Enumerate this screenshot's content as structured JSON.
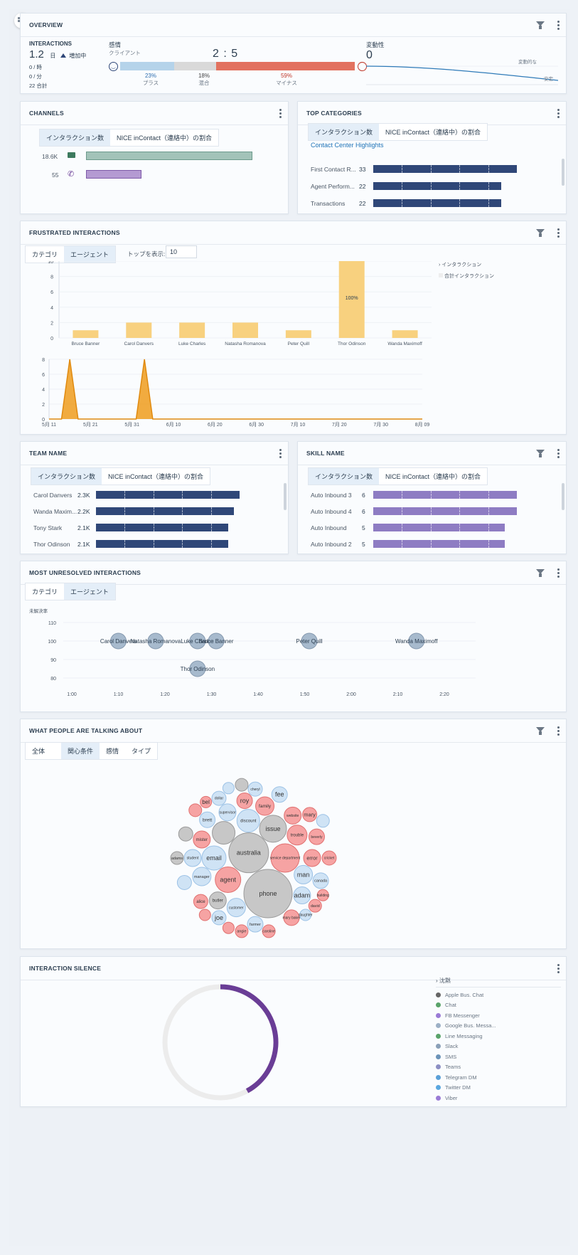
{
  "overview": {
    "title": "OVERVIEW",
    "interactions_label": "INTERACTIONS",
    "interactions_value": "1.2",
    "interactions_unit": "日",
    "trend": "増加中",
    "per_hour": "0 / 時",
    "per_min": "0 / 分",
    "total": "22 合計",
    "sentiment_label": "感情",
    "sentiment_sub": "クライアント",
    "ratio": "2 : 5",
    "pos_pct": "23%",
    "pos_label": "プラス",
    "mix_pct": "18%",
    "mix_label": "混合",
    "neg_pct": "59%",
    "neg_label": "マイナス",
    "pos_share": 23,
    "mix_share": 18,
    "neg_share": 59,
    "volatility_label": "変動性",
    "volatility_value": "0",
    "volatile_label": "変動的な",
    "stable_label": "安定"
  },
  "channels": {
    "title": "CHANNELS",
    "tabs": [
      "インタラクション数",
      "NICE inContact（連絡中）の割合"
    ],
    "rows": [
      {
        "value": "18.6K",
        "icon": "email-icon",
        "amount": 18600,
        "color": "#a3c3b9"
      },
      {
        "value": "55",
        "icon": "phone-icon",
        "amount": 55,
        "color": "#b49ad2"
      }
    ]
  },
  "top_categories": {
    "title": "TOP CATEGORIES",
    "tabs": [
      "インタラクション数",
      "NICE inContact（連絡中）の割合"
    ],
    "link": "Contact Center Highlights",
    "rows": [
      {
        "label": "First Contact R...",
        "value": "33",
        "amount": 33
      },
      {
        "label": "Agent Perform...",
        "value": "22",
        "amount": 22
      },
      {
        "label": "Transactions",
        "value": "22",
        "amount": 22
      }
    ]
  },
  "frustrated": {
    "title": "FRUSTRATED INTERACTIONS",
    "tabs": [
      "カテゴリ",
      "エージェント"
    ],
    "top_label": "トップを表示:",
    "top_value": "10",
    "legend": [
      "インタラクション",
      "合計インタラクション"
    ],
    "bar_label": "100%"
  },
  "team": {
    "title": "TEAM NAME",
    "tabs": [
      "インタラクション数",
      "NICE inContact（連絡中）の割合"
    ],
    "rows": [
      {
        "label": "Carol Danvers",
        "value": "2.3K",
        "amount": 2300
      },
      {
        "label": "Wanda Maxim...",
        "value": "2.2K",
        "amount": 2200
      },
      {
        "label": "Tony Stark",
        "value": "2.1K",
        "amount": 2100
      },
      {
        "label": "Thor Odinson",
        "value": "2.1K",
        "amount": 2100
      }
    ]
  },
  "skill": {
    "title": "SKILL NAME",
    "tabs": [
      "インタラクション数",
      "NICE inContact（連絡中）の割合"
    ],
    "rows": [
      {
        "label": "Auto Inbound 3",
        "value": "6",
        "amount": 6
      },
      {
        "label": "Auto Inbound 4",
        "value": "6",
        "amount": 6
      },
      {
        "label": "Auto Inbound",
        "value": "5",
        "amount": 5
      },
      {
        "label": "Auto Inbound 2",
        "value": "5",
        "amount": 5
      }
    ]
  },
  "unresolved": {
    "title": "MOST UNRESOLVED INTERACTIONS",
    "tabs": [
      "カテゴリ",
      "エージェント"
    ]
  },
  "talking": {
    "title": "WHAT PEOPLE ARE TALKING ABOUT",
    "tabs": [
      "全体",
      "関心条件",
      "感情",
      "タイプ"
    ]
  },
  "silence": {
    "title": "INTERACTION SILENCE",
    "legend_title": "沈黙",
    "legend": [
      {
        "label": "Apple Bus. Chat",
        "icon": "apple-icon"
      },
      {
        "label": "Chat",
        "icon": "chat-icon"
      },
      {
        "label": "FB Messenger",
        "icon": "messenger-icon"
      },
      {
        "label": "Google Bus. Messa...",
        "icon": "google-messages-icon"
      },
      {
        "label": "Line Messaging",
        "icon": "line-icon"
      },
      {
        "label": "Slack",
        "icon": "slack-icon"
      },
      {
        "label": "SMS",
        "icon": "sms-icon"
      },
      {
        "label": "Teams",
        "icon": "teams-icon"
      },
      {
        "label": "Telegram DM",
        "icon": "telegram-icon"
      },
      {
        "label": "Twitter DM",
        "icon": "twitter-icon"
      },
      {
        "label": "Viber",
        "icon": "viber-icon"
      }
    ],
    "share": 0.42,
    "color": "#6a3d96"
  },
  "chart_data": [
    {
      "type": "bar",
      "categories": [
        "Bruce Banner",
        "Carol Danvers",
        "Luke Charles",
        "Natasha Romanova",
        "Peter Quill",
        "Thor Odinson",
        "Wanda Maximoff"
      ],
      "values": [
        1,
        2,
        2,
        2,
        1,
        10,
        1
      ],
      "ylim": [
        0,
        10
      ],
      "yticks": [
        0,
        2,
        4,
        6,
        8,
        10
      ],
      "color": "#f8d17f"
    },
    {
      "type": "line",
      "x": [
        "5月 11",
        "5月 14",
        "5月 16",
        "5月 18",
        "6月 1",
        "6月 3",
        "6月 5",
        "8月 09"
      ],
      "y": [
        0,
        0,
        8,
        0,
        0,
        8,
        0,
        0
      ],
      "xticks": [
        "5月 11",
        "5月 21",
        "5月 31",
        "6月 10",
        "6月 20",
        "6月 30",
        "7月 10",
        "7月 20",
        "7月 30",
        "8月 09"
      ],
      "ylim": [
        0,
        8
      ],
      "yticks": [
        0,
        2,
        4,
        6,
        8
      ],
      "color": "#f0a22a"
    },
    {
      "type": "scatter",
      "ylabel": "未解決率",
      "points": [
        {
          "name": "Carol Danvers",
          "x": "1:10",
          "y": 100
        },
        {
          "name": "Natasha Romanova",
          "x": "1:18",
          "y": 100
        },
        {
          "name": "Luke Charles",
          "x": "1:27",
          "y": 100
        },
        {
          "name": "Bruce Banner",
          "x": "1:31",
          "y": 100
        },
        {
          "name": "Peter Quill",
          "x": "1:51",
          "y": 100
        },
        {
          "name": "Wanda Maximoff",
          "x": "2:14",
          "y": 100
        },
        {
          "name": "Thor Odinson",
          "x": "1:27",
          "y": 85
        }
      ],
      "xticks": [
        "1:00",
        "1:10",
        "1:20",
        "1:30",
        "1:40",
        "1:50",
        "2:00",
        "2:10",
        "2:20"
      ],
      "yticks": [
        80,
        90,
        100,
        110
      ],
      "ylim": [
        80,
        110
      ]
    },
    {
      "type": "bubble",
      "bubbles": [
        {
          "label": "phone",
          "s": "neutral",
          "r": 34
        },
        {
          "label": "australia",
          "s": "neutral",
          "r": 28
        },
        {
          "label": "issue",
          "s": "neutral",
          "r": 19
        },
        {
          "label": "agent",
          "s": "negative",
          "r": 18
        },
        {
          "label": "service department",
          "s": "negative",
          "r": 20
        },
        {
          "label": "email",
          "s": "positive",
          "r": 17
        },
        {
          "label": "discount",
          "s": "positive",
          "r": 16
        },
        {
          "label": "",
          "s": "neutral",
          "r": 16
        },
        {
          "label": "man",
          "s": "positive",
          "r": 13
        },
        {
          "label": "customer",
          "s": "positive",
          "r": 13
        },
        {
          "label": "trouble",
          "s": "negative",
          "r": 14
        },
        {
          "label": "family",
          "s": "negative",
          "r": 13
        },
        {
          "label": "supervisor",
          "s": "positive",
          "r": 12
        },
        {
          "label": "manager",
          "s": "positive",
          "r": 13
        },
        {
          "label": "error",
          "s": "negative",
          "r": 12
        },
        {
          "label": "mister",
          "s": "negative",
          "r": 12
        },
        {
          "label": "butler",
          "s": "neutral",
          "r": 12
        },
        {
          "label": "website",
          "s": "negative",
          "r": 12
        },
        {
          "label": "roy",
          "s": "negative",
          "r": 11
        },
        {
          "label": "adam",
          "s": "positive",
          "r": 12
        },
        {
          "label": "brett",
          "s": "positive",
          "r": 11
        },
        {
          "label": "student",
          "s": "positive",
          "r": 12
        },
        {
          "label": "beverly",
          "s": "negative",
          "r": 11
        },
        {
          "label": "canada",
          "s": "positive",
          "r": 11
        },
        {
          "label": "farmer",
          "s": "positive",
          "r": 11
        },
        {
          "label": "alice",
          "s": "negative",
          "r": 10
        },
        {
          "label": "mary",
          "s": "negative",
          "r": 10
        },
        {
          "label": "fee",
          "s": "positive",
          "r": 11
        },
        {
          "label": "joe",
          "s": "positive",
          "r": 10
        },
        {
          "label": "dollar",
          "s": "positive",
          "r": 10
        },
        {
          "label": "cheryl",
          "s": "positive",
          "r": 10
        },
        {
          "label": "cricket",
          "s": "negative",
          "r": 10
        },
        {
          "label": "david",
          "s": "negative",
          "r": 9
        },
        {
          "label": "caroline",
          "s": "negative",
          "r": 9
        },
        {
          "label": "mary baker",
          "s": "negative",
          "r": 11
        },
        {
          "label": "angie",
          "s": "negative",
          "r": 9
        },
        {
          "label": "bel",
          "s": "negative",
          "r": 8
        },
        {
          "label": "adams",
          "s": "neutral",
          "r": 9
        },
        {
          "label": "building",
          "s": "negative",
          "r": 8
        },
        {
          "label": "daughter",
          "s": "positive",
          "r": 8
        },
        {
          "label": "",
          "s": "negative",
          "r": 9
        },
        {
          "label": "",
          "s": "neutral",
          "r": 10
        },
        {
          "label": "",
          "s": "neutral",
          "r": 9
        },
        {
          "label": "",
          "s": "positive",
          "r": 10
        },
        {
          "label": "",
          "s": "negative",
          "r": 8
        },
        {
          "label": "",
          "s": "positive",
          "r": 9
        },
        {
          "label": "",
          "s": "negative",
          "r": 8
        },
        {
          "label": "",
          "s": "positive",
          "r": 8
        }
      ]
    },
    {
      "type": "pie",
      "values": [
        42,
        58
      ]
    }
  ]
}
